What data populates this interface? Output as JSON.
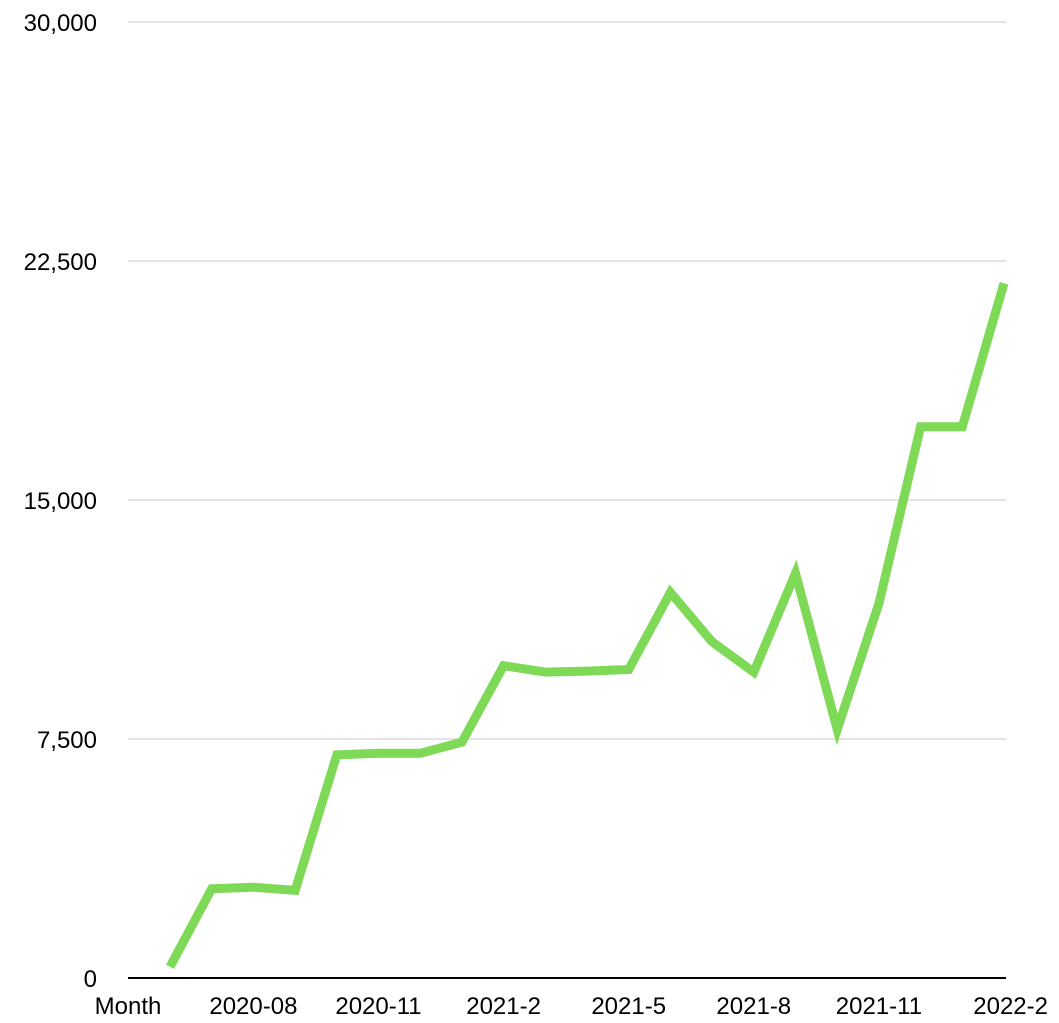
{
  "chart_data": {
    "type": "line",
    "title": "",
    "xlabel": "Month",
    "ylabel": "",
    "ylim": [
      0,
      30000
    ],
    "yticks": [
      0,
      7500,
      15000,
      22500,
      30000
    ],
    "ytick_labels": [
      "0",
      "7,500",
      "15,000",
      "22,500",
      "30,000"
    ],
    "x": [
      "2020-06",
      "2020-07",
      "2020-08",
      "2020-09",
      "2020-10",
      "2020-11",
      "2020-12",
      "2021-1",
      "2021-2",
      "2021-3",
      "2021-4",
      "2021-5",
      "2021-6",
      "2021-7",
      "2021-8",
      "2021-9",
      "2021-10",
      "2021-11",
      "2021-12",
      "2022-1",
      "2022-2"
    ],
    "xtick_labels": [
      "2020-08",
      "2020-11",
      "2021-2",
      "2021-5",
      "2021-8",
      "2021-11",
      "2022-2"
    ],
    "series": [
      {
        "values": [
          350,
          2800,
          2850,
          2750,
          7000,
          7050,
          7050,
          7400,
          9800,
          9600,
          9630,
          9680,
          12100,
          10550,
          9600,
          12700,
          7800,
          11750,
          17300,
          17300,
          21800
        ]
      }
    ],
    "grid": true,
    "line_color": "#7ED957",
    "grid_color": "#c8c8c8",
    "axis_color": "#000000"
  }
}
